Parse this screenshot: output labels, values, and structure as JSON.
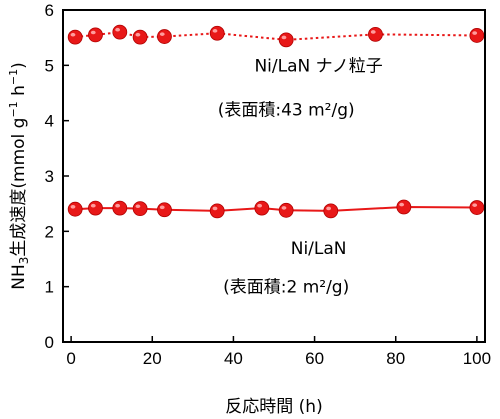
{
  "chart_data": {
    "type": "line",
    "xlabel": "反応時間 (h)",
    "ylabel": {
      "prefix": "NH",
      "sub": "3",
      "main": "生成速度(mmol g",
      "sup1": "−1",
      "mid": " h",
      "sup2": "−1",
      "end": ")"
    },
    "xlim": [
      -2,
      102
    ],
    "ylim": [
      0,
      6
    ],
    "xticks": [
      "0",
      "20",
      "40",
      "60",
      "80",
      "100"
    ],
    "yticks": [
      "0",
      "1",
      "2",
      "3",
      "4",
      "5",
      "6"
    ],
    "grid": false,
    "series": [
      {
        "name": "Ni/LaN ナノ粒子",
        "x": [
          1,
          6,
          12,
          17,
          23,
          36,
          53,
          75,
          100
        ],
        "values": [
          5.51,
          5.55,
          5.6,
          5.51,
          5.52,
          5.58,
          5.46,
          5.56,
          5.54
        ],
        "style": "dotted-line"
      },
      {
        "name": "Ni/LaN",
        "x": [
          1,
          6,
          12,
          17,
          23,
          36,
          47,
          53,
          64,
          82,
          100
        ],
        "values": [
          2.4,
          2.42,
          2.42,
          2.41,
          2.39,
          2.37,
          2.42,
          2.38,
          2.37,
          2.44,
          2.43
        ],
        "style": "solid-line"
      }
    ],
    "annotations": [
      {
        "id": "nano-name",
        "text": "Ni/LaN ナノ粒子",
        "x": 61,
        "y": 5.0
      },
      {
        "id": "nano-area",
        "text": "(表面積:43 m²/g)",
        "x": 53,
        "y": 4.2
      },
      {
        "id": "bulk-name",
        "text": "Ni/LaN",
        "x": 61,
        "y": 1.7
      },
      {
        "id": "bulk-area",
        "text": "(表面積:2 m²/g)",
        "x": 53,
        "y": 1.0
      }
    ],
    "colors": {
      "marker": "#e81818",
      "line": "#e81818",
      "axis": "#000000"
    }
  }
}
